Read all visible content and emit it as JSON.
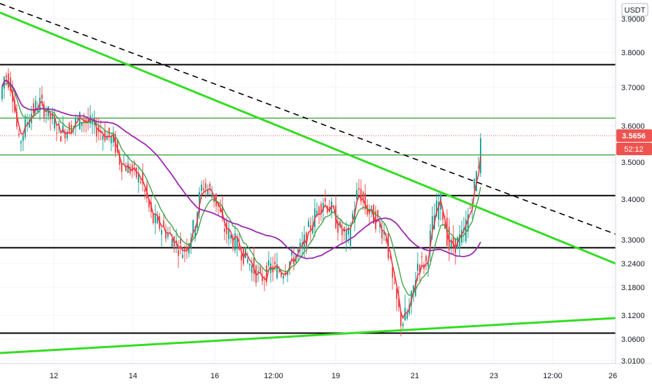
{
  "chart_data": {
    "type": "candlestick",
    "currency": "USDT",
    "last_price": "3.5656",
    "countdown": "52:12",
    "y_ticks": [
      "3.9000",
      "3.8000",
      "3.7000",
      "3.6000",
      "3.5000",
      "3.4000",
      "3.3000",
      "3.2400",
      "3.1800",
      "3.1200",
      "3.0600",
      "3.0100"
    ],
    "x_ticks": [
      "12",
      "14",
      "16",
      "12:00",
      "19",
      "21",
      "23",
      "12:00",
      "26"
    ],
    "horizontal_levels": {
      "black": [
        3.765,
        3.41,
        3.28,
        3.075
      ],
      "green": [
        3.62,
        3.52
      ]
    },
    "colors": {
      "up": "#26a69a",
      "down": "#ef5350",
      "ma_fast": "#f23645",
      "ma_mid": "#43a047",
      "ma_slow": "#9c27b0",
      "trendline": "#33dd22",
      "dashed_trendline": "#000000",
      "price_tag": "#ef5350"
    }
  }
}
